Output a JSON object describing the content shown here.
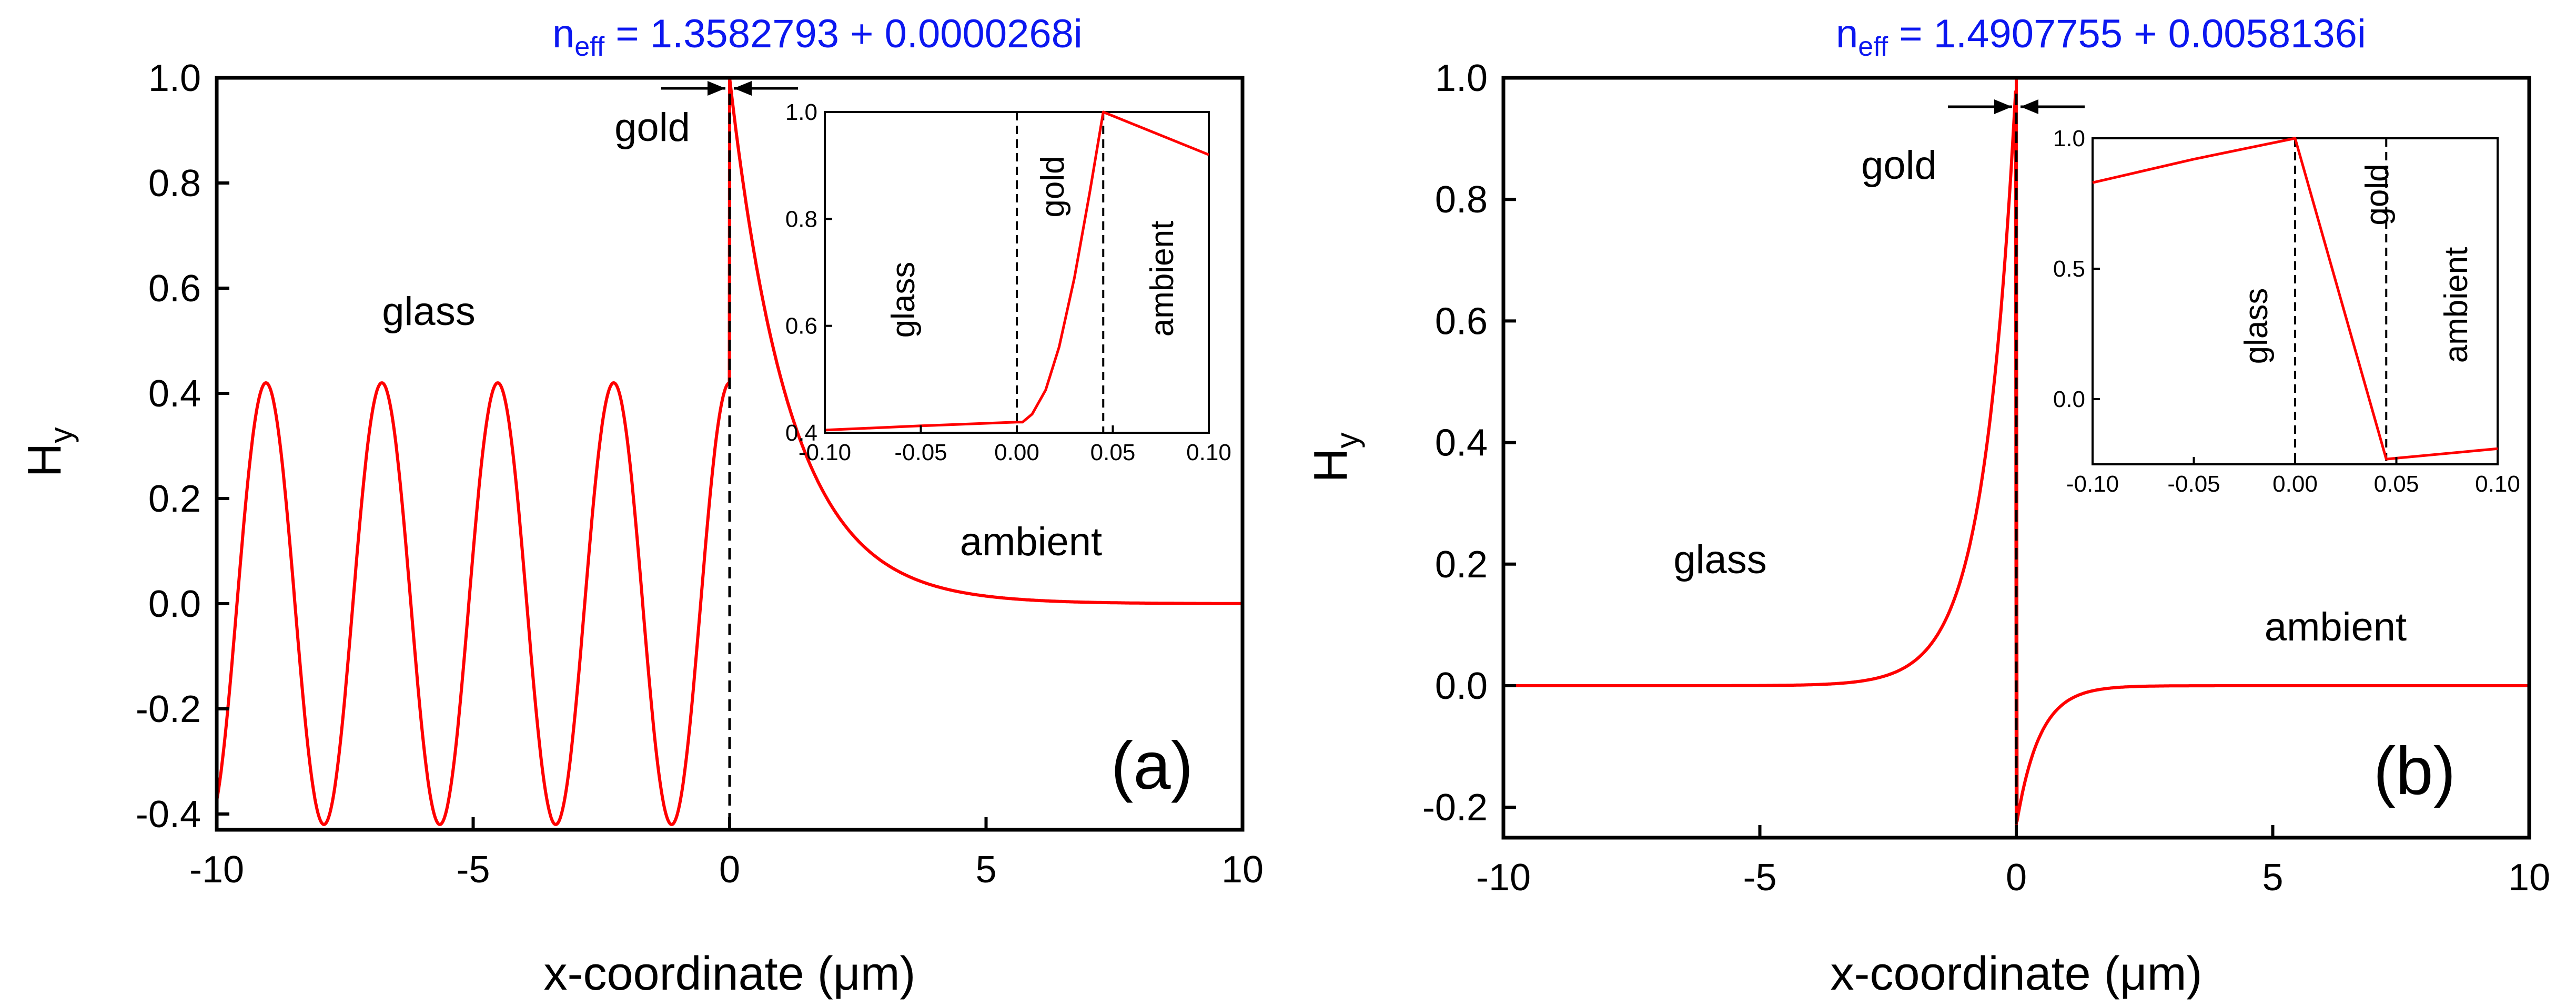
{
  "chart_data": [
    {
      "type": "line",
      "panel_label": "(a)",
      "neff_prefix": "n",
      "neff_sub": "eff",
      "neff_value": " = 1.3582793 + 0.0000268i",
      "xlabel": "x-coordinate (μm)",
      "ylabel_main": "H",
      "ylabel_sub": "y",
      "xlim": [
        -10,
        10
      ],
      "ylim": [
        -0.43,
        1.0
      ],
      "xticks": [
        -10,
        -5,
        0,
        5,
        10
      ],
      "xtick_labels": [
        "-10",
        "-5",
        "0",
        "5",
        "10"
      ],
      "yticks": [
        -0.4,
        -0.2,
        0.0,
        0.2,
        0.4,
        0.6,
        0.8,
        1.0
      ],
      "ytick_labels": [
        "-0.4",
        "-0.2",
        "0.0",
        "0.2",
        "0.4",
        "0.6",
        "0.8",
        "1.0"
      ],
      "interface_x": 0,
      "regions": [
        {
          "label": "glass",
          "x": -5.8,
          "y": 0.53
        },
        {
          "label": "gold",
          "x": -1.55,
          "y": 0.89
        },
        {
          "label": "ambient",
          "x": 7.3,
          "y": 0.11
        }
      ],
      "series": [
        {
          "name": "Hy",
          "color": "#ff0000",
          "glass_model": {
            "kind": "oscillating",
            "amplitude": 0.42,
            "period": 2.26,
            "peak_x": 0
          },
          "ambient_model": {
            "kind": "exponential_decay",
            "peak": 1.0,
            "decay_length": 1.18
          }
        }
      ],
      "inset": {
        "xlim": [
          -0.1,
          0.1
        ],
        "ylim": [
          0.4,
          1.0
        ],
        "xticks": [
          -0.1,
          -0.05,
          0.0,
          0.05,
          0.1
        ],
        "xtick_labels": [
          "-0.10",
          "-0.05",
          "0.00",
          "0.05",
          "0.10"
        ],
        "yticks": [
          0.4,
          0.6,
          0.8,
          1.0
        ],
        "ytick_labels": [
          "0.4",
          "0.6",
          "0.8",
          "1.0"
        ],
        "dashed_lines_x": [
          0.0,
          0.045
        ],
        "regions": [
          "glass",
          "gold",
          "ambient"
        ],
        "series_x": [
          -0.1,
          -0.05,
          0.0,
          0.003,
          0.008,
          0.015,
          0.022,
          0.03,
          0.038,
          0.045,
          0.1
        ],
        "series_y": [
          0.405,
          0.413,
          0.42,
          0.42,
          0.435,
          0.48,
          0.56,
          0.69,
          0.85,
          1.0,
          0.92
        ]
      }
    },
    {
      "type": "line",
      "panel_label": "(b)",
      "neff_prefix": "n",
      "neff_sub": "eff",
      "neff_value": " = 1.4907755 + 0.0058136i",
      "xlabel": "x-coordinate (μm)",
      "ylabel_main": "H",
      "ylabel_sub": "y",
      "xlim": [
        -10,
        10
      ],
      "ylim": [
        -0.25,
        1.0
      ],
      "xticks": [
        -10,
        -5,
        0,
        5,
        10
      ],
      "xtick_labels": [
        "-10",
        "-5",
        "0",
        "5",
        "10"
      ],
      "yticks": [
        -0.2,
        0.0,
        0.2,
        0.4,
        0.6,
        0.8,
        1.0
      ],
      "ytick_labels": [
        "-0.2",
        "0.0",
        "0.2",
        "0.4",
        "0.6",
        "0.8",
        "1.0"
      ],
      "interface_x": 0,
      "regions": [
        {
          "label": "gold",
          "x": -2.4,
          "y": 0.88
        },
        {
          "label": "glass",
          "x": -5.9,
          "y": 0.17
        },
        {
          "label": "ambient",
          "x": 5.0,
          "y": 0.08
        }
      ],
      "series": [
        {
          "name": "Hy",
          "color": "#ff0000",
          "glass_model": {
            "kind": "exponential_growth",
            "peak": 1.0,
            "decay_length": 0.62
          },
          "ambient_model": {
            "kind": "exponential_decay",
            "peak": -0.23,
            "decay_length": 0.45
          }
        }
      ],
      "inset": {
        "xlim": [
          -0.1,
          0.1
        ],
        "ylim": [
          -0.25,
          1.0
        ],
        "xticks": [
          -0.1,
          -0.05,
          0.0,
          0.05,
          0.1
        ],
        "xtick_labels": [
          "-0.10",
          "-0.05",
          "0.00",
          "0.05",
          "0.10"
        ],
        "yticks": [
          0.0,
          0.5,
          1.0
        ],
        "ytick_labels": [
          "0.0",
          "0.5",
          "1.0"
        ],
        "dashed_lines_x": [
          0.0,
          0.045
        ],
        "regions": [
          "glass",
          "gold",
          "ambient"
        ],
        "series_x": [
          -0.1,
          -0.05,
          0.0,
          0.045,
          0.1
        ],
        "series_y": [
          0.83,
          0.92,
          1.0,
          -0.23,
          -0.19
        ]
      }
    }
  ]
}
